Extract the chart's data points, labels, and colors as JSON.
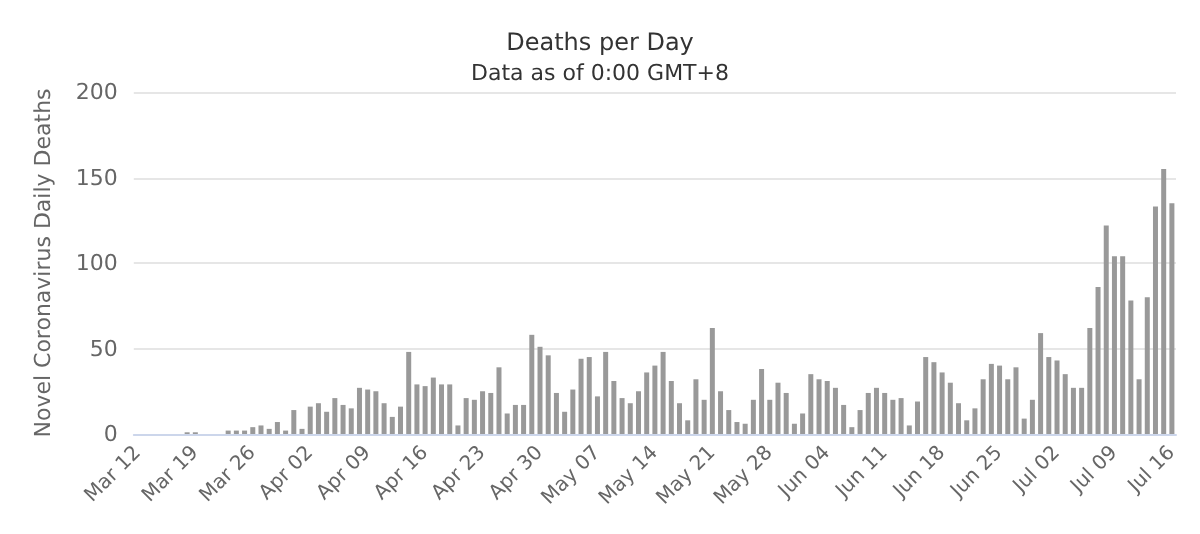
{
  "chart_data": {
    "type": "bar",
    "title": "Deaths per Day",
    "subtitle": "Data as of 0:00 GMT+8",
    "ylabel": "Novel Coronavirus Daily Deaths",
    "categories": [
      "Mar 12",
      null,
      null,
      null,
      null,
      null,
      null,
      "Mar 19",
      null,
      null,
      null,
      null,
      null,
      null,
      "Mar 26",
      null,
      null,
      null,
      null,
      null,
      null,
      "Apr 02",
      null,
      null,
      null,
      null,
      null,
      null,
      "Apr 09",
      null,
      null,
      null,
      null,
      null,
      null,
      "Apr 16",
      null,
      null,
      null,
      null,
      null,
      null,
      "Apr 23",
      null,
      null,
      null,
      null,
      null,
      null,
      "Apr 30",
      null,
      null,
      null,
      null,
      null,
      null,
      "May 07",
      null,
      null,
      null,
      null,
      null,
      null,
      "May 14",
      null,
      null,
      null,
      null,
      null,
      null,
      "May 21",
      null,
      null,
      null,
      null,
      null,
      null,
      "May 28",
      null,
      null,
      null,
      null,
      null,
      null,
      "Jun 04",
      null,
      null,
      null,
      null,
      null,
      null,
      "Jun 11",
      null,
      null,
      null,
      null,
      null,
      null,
      "Jun 18",
      null,
      null,
      null,
      null,
      null,
      null,
      "Jun 25",
      null,
      null,
      null,
      null,
      null,
      null,
      "Jul 02",
      null,
      null,
      null,
      null,
      null,
      null,
      "Jul 09",
      null,
      null,
      null,
      null,
      null,
      null,
      "Jul 16"
    ],
    "values": [
      0,
      0,
      0,
      0,
      0,
      0,
      1,
      1,
      0,
      0,
      0,
      2,
      2,
      2,
      4,
      5,
      3,
      7,
      2,
      14,
      3,
      16,
      18,
      13,
      21,
      17,
      15,
      27,
      26,
      25,
      18,
      10,
      16,
      48,
      29,
      28,
      33,
      29,
      29,
      5,
      21,
      20,
      25,
      24,
      39,
      12,
      17,
      17,
      58,
      51,
      46,
      24,
      13,
      26,
      44,
      45,
      22,
      48,
      31,
      21,
      18,
      25,
      36,
      40,
      48,
      31,
      18,
      8,
      32,
      20,
      62,
      25,
      14,
      7,
      6,
      20,
      38,
      20,
      30,
      24,
      6,
      12,
      35,
      32,
      31,
      27,
      17,
      4,
      14,
      24,
      27,
      24,
      20,
      21,
      5,
      19,
      45,
      42,
      36,
      30,
      18,
      8,
      15,
      32,
      41,
      40,
      32,
      39,
      9,
      20,
      59,
      45,
      43,
      35,
      27,
      27,
      62,
      86,
      122,
      104,
      104,
      78,
      32,
      80,
      133,
      155,
      135
    ],
    "color": "#999999",
    "ylim": [
      0,
      200
    ],
    "yticks": [
      0,
      50,
      100,
      150,
      200
    ],
    "grid": "y"
  }
}
